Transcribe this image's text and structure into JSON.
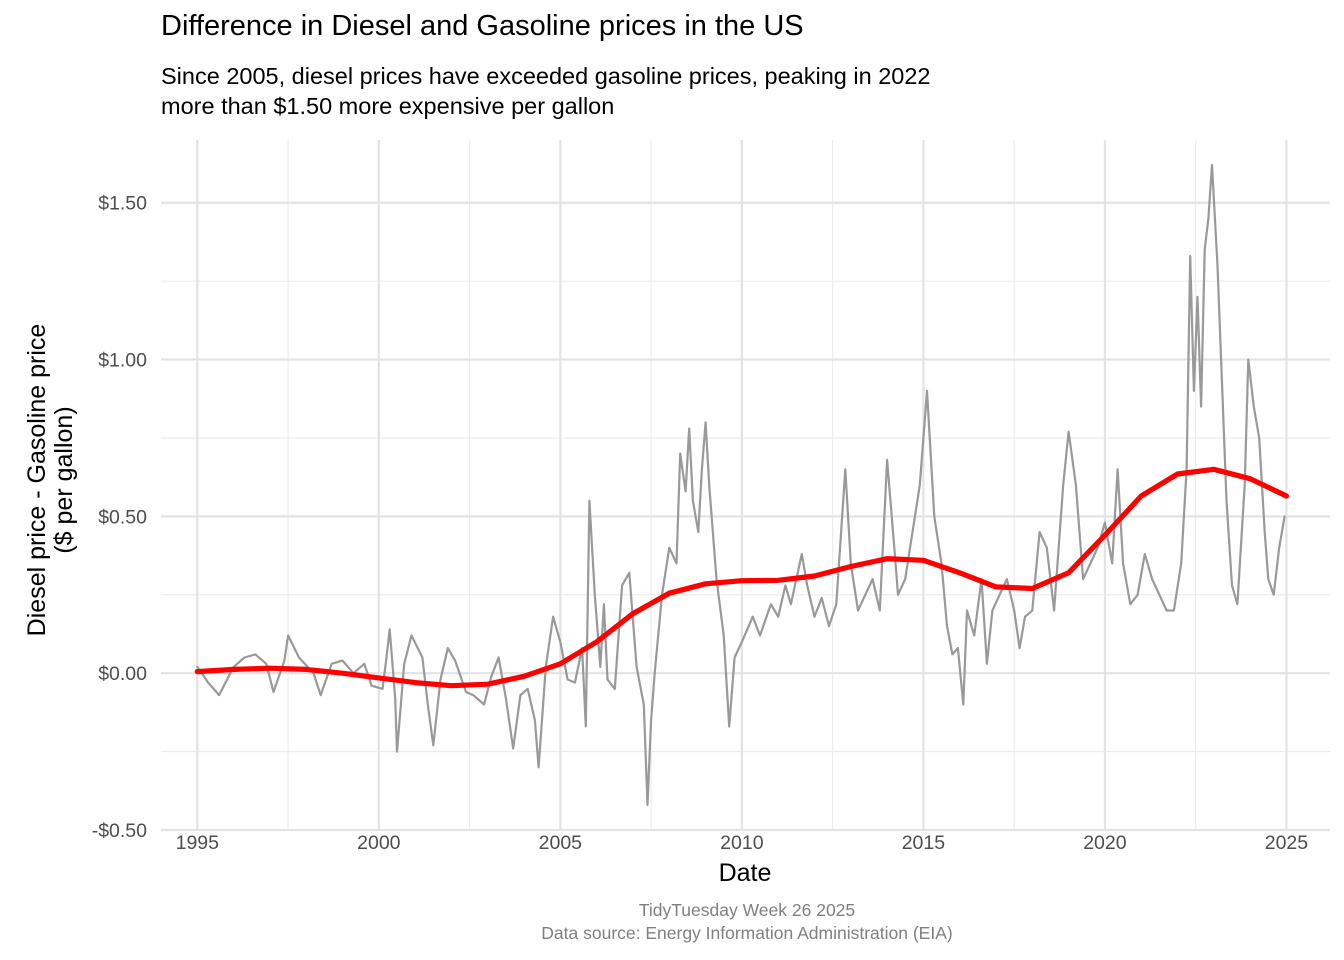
{
  "chart_data": {
    "type": "line",
    "title": "Difference in Diesel and Gasoline prices in the US",
    "subtitle": [
      "Since 2005, diesel prices have exceeded gasoline prices, peaking in 2022",
      "more than $1.50 more expensive per gallon"
    ],
    "xlabel": "Date",
    "ylabel": [
      "Diesel price - Gasoline price",
      "($ per gallon)"
    ],
    "caption": [
      "TidyTuesday Week 26 2025",
      "Data source: Energy Information Administration (EIA)"
    ],
    "xlim": [
      1994.0,
      2026.2
    ],
    "ylim": [
      -0.5,
      1.7
    ],
    "x_ticks": [
      1995,
      2000,
      2005,
      2010,
      2015,
      2020,
      2025
    ],
    "x_tick_labels": [
      "1995",
      "2000",
      "2005",
      "2010",
      "2015",
      "2020",
      "2025"
    ],
    "y_ticks": [
      -0.5,
      0,
      0.5,
      1,
      1.5
    ],
    "y_tick_labels": [
      "-$0.50",
      "$0.00",
      "$0.50",
      "$1.00",
      "$1.50"
    ],
    "grid": true,
    "series": [
      {
        "role": "weekly difference",
        "color": "#999999",
        "points": [
          [
            1995.0,
            0.02
          ],
          [
            1995.3,
            -0.03
          ],
          [
            1995.6,
            -0.07
          ],
          [
            1996.0,
            0.02
          ],
          [
            1996.3,
            0.05
          ],
          [
            1996.6,
            0.06
          ],
          [
            1996.9,
            0.03
          ],
          [
            1997.1,
            -0.06
          ],
          [
            1997.4,
            0.04
          ],
          [
            1997.5,
            0.12
          ],
          [
            1997.8,
            0.05
          ],
          [
            1998.2,
            0.0
          ],
          [
            1998.4,
            -0.07
          ],
          [
            1998.7,
            0.03
          ],
          [
            1999.0,
            0.04
          ],
          [
            1999.3,
            0.0
          ],
          [
            1999.6,
            0.03
          ],
          [
            1999.8,
            -0.04
          ],
          [
            2000.1,
            -0.05
          ],
          [
            2000.2,
            0.04
          ],
          [
            2000.3,
            0.14
          ],
          [
            2000.45,
            -0.08
          ],
          [
            2000.5,
            -0.25
          ],
          [
            2000.7,
            0.03
          ],
          [
            2000.9,
            0.12
          ],
          [
            2001.2,
            0.05
          ],
          [
            2001.35,
            -0.1
          ],
          [
            2001.5,
            -0.23
          ],
          [
            2001.7,
            -0.02
          ],
          [
            2001.9,
            0.08
          ],
          [
            2002.1,
            0.04
          ],
          [
            2002.4,
            -0.06
          ],
          [
            2002.6,
            -0.07
          ],
          [
            2002.9,
            -0.1
          ],
          [
            2003.1,
            -0.01
          ],
          [
            2003.3,
            0.05
          ],
          [
            2003.5,
            -0.08
          ],
          [
            2003.7,
            -0.24
          ],
          [
            2003.9,
            -0.07
          ],
          [
            2004.1,
            -0.05
          ],
          [
            2004.3,
            -0.15
          ],
          [
            2004.4,
            -0.3
          ],
          [
            2004.6,
            0.02
          ],
          [
            2004.8,
            0.18
          ],
          [
            2005.0,
            0.1
          ],
          [
            2005.2,
            -0.02
          ],
          [
            2005.4,
            -0.03
          ],
          [
            2005.6,
            0.08
          ],
          [
            2005.7,
            -0.17
          ],
          [
            2005.8,
            0.55
          ],
          [
            2005.95,
            0.25
          ],
          [
            2006.1,
            0.02
          ],
          [
            2006.2,
            0.22
          ],
          [
            2006.3,
            -0.02
          ],
          [
            2006.5,
            -0.05
          ],
          [
            2006.7,
            0.28
          ],
          [
            2006.9,
            0.32
          ],
          [
            2007.1,
            0.02
          ],
          [
            2007.3,
            -0.1
          ],
          [
            2007.4,
            -0.42
          ],
          [
            2007.5,
            -0.15
          ],
          [
            2007.6,
            0.0
          ],
          [
            2007.8,
            0.25
          ],
          [
            2008.0,
            0.4
          ],
          [
            2008.2,
            0.35
          ],
          [
            2008.3,
            0.7
          ],
          [
            2008.45,
            0.58
          ],
          [
            2008.55,
            0.78
          ],
          [
            2008.65,
            0.55
          ],
          [
            2008.8,
            0.45
          ],
          [
            2008.9,
            0.65
          ],
          [
            2009.0,
            0.8
          ],
          [
            2009.1,
            0.6
          ],
          [
            2009.3,
            0.3
          ],
          [
            2009.5,
            0.12
          ],
          [
            2009.65,
            -0.17
          ],
          [
            2009.8,
            0.05
          ],
          [
            2010.0,
            0.1
          ],
          [
            2010.3,
            0.18
          ],
          [
            2010.5,
            0.12
          ],
          [
            2010.8,
            0.22
          ],
          [
            2011.0,
            0.18
          ],
          [
            2011.2,
            0.28
          ],
          [
            2011.35,
            0.22
          ],
          [
            2011.5,
            0.3
          ],
          [
            2011.65,
            0.38
          ],
          [
            2011.8,
            0.28
          ],
          [
            2012.0,
            0.18
          ],
          [
            2012.2,
            0.24
          ],
          [
            2012.4,
            0.15
          ],
          [
            2012.6,
            0.22
          ],
          [
            2012.85,
            0.65
          ],
          [
            2013.0,
            0.35
          ],
          [
            2013.2,
            0.2
          ],
          [
            2013.4,
            0.25
          ],
          [
            2013.6,
            0.3
          ],
          [
            2013.8,
            0.2
          ],
          [
            2014.0,
            0.68
          ],
          [
            2014.2,
            0.4
          ],
          [
            2014.3,
            0.25
          ],
          [
            2014.5,
            0.3
          ],
          [
            2014.7,
            0.45
          ],
          [
            2014.9,
            0.6
          ],
          [
            2015.1,
            0.9
          ],
          [
            2015.3,
            0.5
          ],
          [
            2015.5,
            0.35
          ],
          [
            2015.65,
            0.15
          ],
          [
            2015.8,
            0.06
          ],
          [
            2015.95,
            0.08
          ],
          [
            2016.1,
            -0.1
          ],
          [
            2016.2,
            0.2
          ],
          [
            2016.4,
            0.12
          ],
          [
            2016.6,
            0.3
          ],
          [
            2016.75,
            0.03
          ],
          [
            2016.9,
            0.2
          ],
          [
            2017.1,
            0.25
          ],
          [
            2017.3,
            0.3
          ],
          [
            2017.5,
            0.2
          ],
          [
            2017.65,
            0.08
          ],
          [
            2017.8,
            0.18
          ],
          [
            2018.0,
            0.2
          ],
          [
            2018.2,
            0.45
          ],
          [
            2018.4,
            0.4
          ],
          [
            2018.6,
            0.2
          ],
          [
            2018.85,
            0.6
          ],
          [
            2019.0,
            0.77
          ],
          [
            2019.2,
            0.6
          ],
          [
            2019.4,
            0.3
          ],
          [
            2019.6,
            0.35
          ],
          [
            2019.8,
            0.4
          ],
          [
            2020.0,
            0.48
          ],
          [
            2020.2,
            0.35
          ],
          [
            2020.35,
            0.65
          ],
          [
            2020.5,
            0.35
          ],
          [
            2020.7,
            0.22
          ],
          [
            2020.9,
            0.25
          ],
          [
            2021.1,
            0.38
          ],
          [
            2021.3,
            0.3
          ],
          [
            2021.5,
            0.25
          ],
          [
            2021.7,
            0.2
          ],
          [
            2021.9,
            0.2
          ],
          [
            2022.1,
            0.35
          ],
          [
            2022.25,
            0.65
          ],
          [
            2022.35,
            1.33
          ],
          [
            2022.45,
            0.9
          ],
          [
            2022.55,
            1.2
          ],
          [
            2022.65,
            0.85
          ],
          [
            2022.75,
            1.35
          ],
          [
            2022.85,
            1.45
          ],
          [
            2022.95,
            1.62
          ],
          [
            2023.1,
            1.3
          ],
          [
            2023.2,
            1.0
          ],
          [
            2023.35,
            0.55
          ],
          [
            2023.5,
            0.28
          ],
          [
            2023.65,
            0.22
          ],
          [
            2023.85,
            0.6
          ],
          [
            2023.95,
            1.0
          ],
          [
            2024.1,
            0.85
          ],
          [
            2024.25,
            0.75
          ],
          [
            2024.4,
            0.45
          ],
          [
            2024.5,
            0.3
          ],
          [
            2024.65,
            0.25
          ],
          [
            2024.8,
            0.4
          ],
          [
            2024.95,
            0.5
          ]
        ]
      },
      {
        "role": "smoothed trend",
        "color": "#ff0000",
        "points": [
          [
            1995.0,
            0.005
          ],
          [
            1996.0,
            0.012
          ],
          [
            1997.0,
            0.016
          ],
          [
            1998.0,
            0.012
          ],
          [
            1999.0,
            0.0
          ],
          [
            2000.0,
            -0.015
          ],
          [
            2001.0,
            -0.03
          ],
          [
            2002.0,
            -0.04
          ],
          [
            2003.0,
            -0.035
          ],
          [
            2004.0,
            -0.01
          ],
          [
            2005.0,
            0.03
          ],
          [
            2006.0,
            0.1
          ],
          [
            2007.0,
            0.19
          ],
          [
            2008.0,
            0.255
          ],
          [
            2009.0,
            0.285
          ],
          [
            2010.0,
            0.295
          ],
          [
            2011.0,
            0.296
          ],
          [
            2012.0,
            0.31
          ],
          [
            2013.0,
            0.34
          ],
          [
            2014.0,
            0.365
          ],
          [
            2015.0,
            0.36
          ],
          [
            2016.0,
            0.32
          ],
          [
            2017.0,
            0.275
          ],
          [
            2018.0,
            0.27
          ],
          [
            2019.0,
            0.32
          ],
          [
            2020.0,
            0.44
          ],
          [
            2021.0,
            0.565
          ],
          [
            2022.0,
            0.635
          ],
          [
            2023.0,
            0.65
          ],
          [
            2024.0,
            0.62
          ],
          [
            2025.0,
            0.565
          ]
        ]
      }
    ]
  }
}
